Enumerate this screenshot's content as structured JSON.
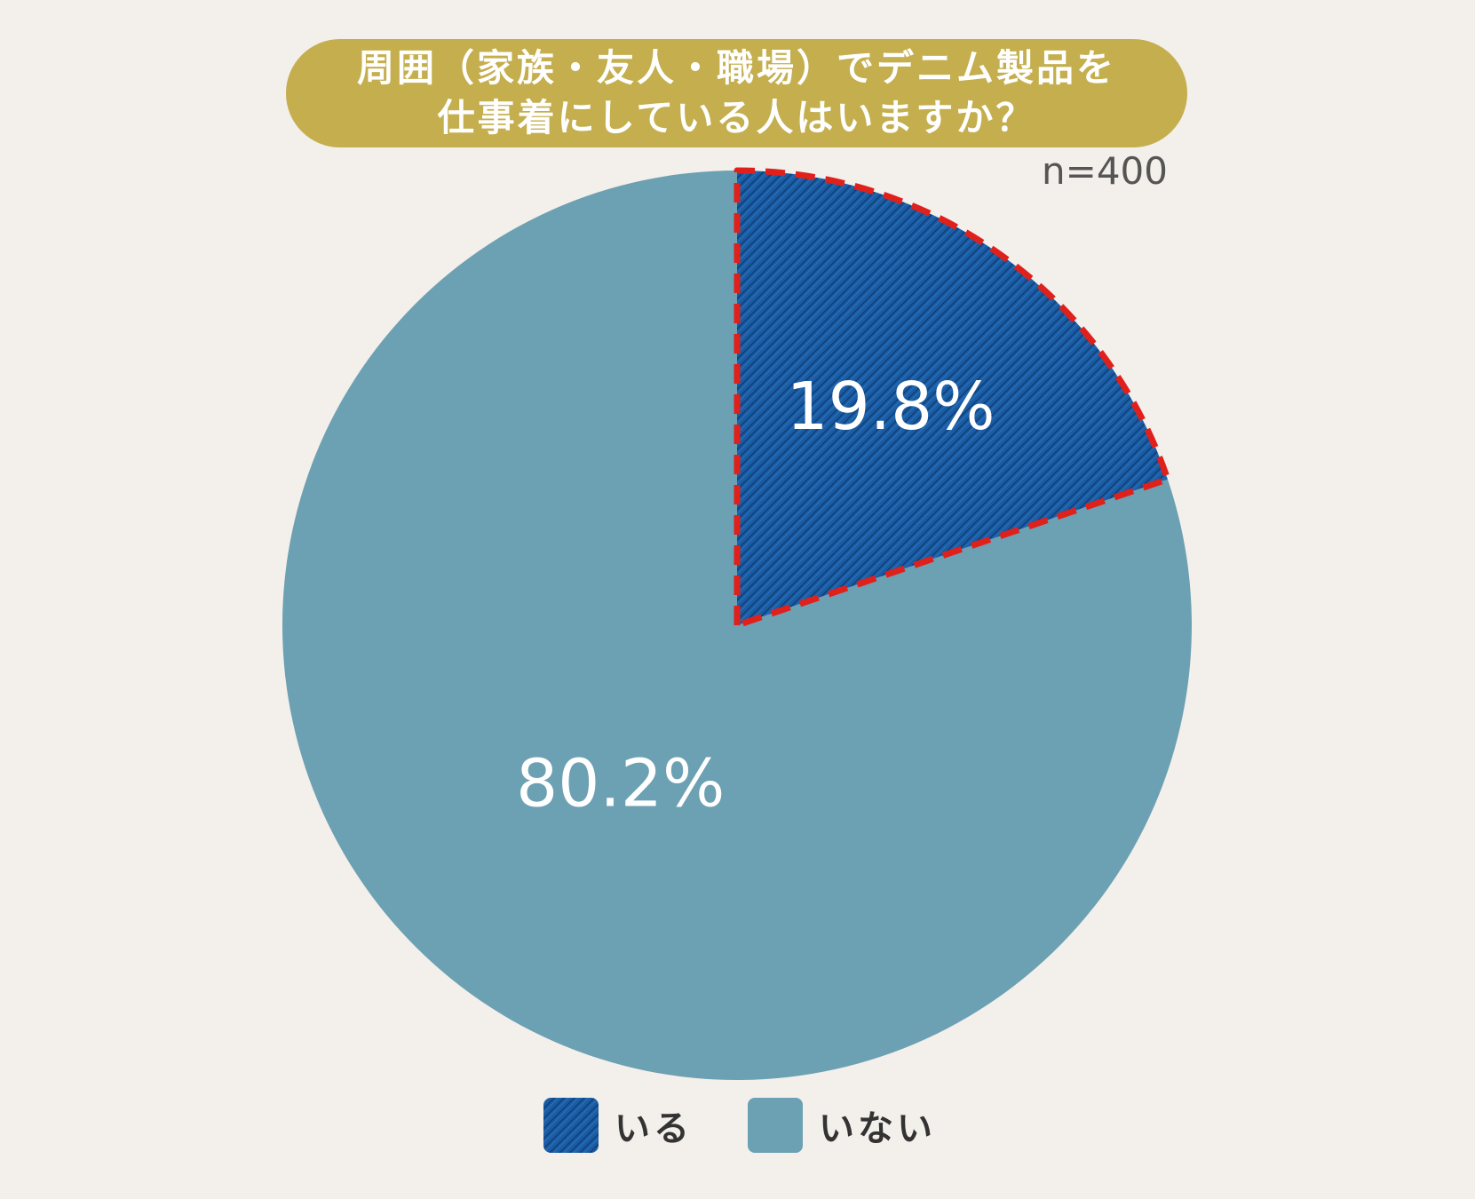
{
  "title": {
    "line1": "周囲（家族・友人・職場）でデニム製品を",
    "line2": "仕事着にしている人はいますか？"
  },
  "sample_size": "n=400",
  "colors": {
    "background": "#f3efea",
    "banner": "#c4ae4d",
    "iru": "#1a5ca3",
    "inai": "#6ca0b3",
    "highlight_border": "#e0201b"
  },
  "chart_data": {
    "type": "pie",
    "title": "周囲（家族・友人・職場）でデニム製品を仕事着にしている人はいますか？",
    "start_angle_deg": 0,
    "direction": "clockwise",
    "slices": [
      {
        "name": "いる",
        "value": 19.8,
        "label": "19.8%",
        "color": "#1a5ca3",
        "pattern": "denim",
        "highlighted": true
      },
      {
        "name": "いない",
        "value": 80.2,
        "label": "80.2%",
        "color": "#6ca0b3",
        "pattern": "none",
        "highlighted": false
      }
    ],
    "legend_position": "bottom-center"
  },
  "legend": {
    "items": [
      {
        "label": "いる"
      },
      {
        "label": "いない"
      }
    ]
  }
}
